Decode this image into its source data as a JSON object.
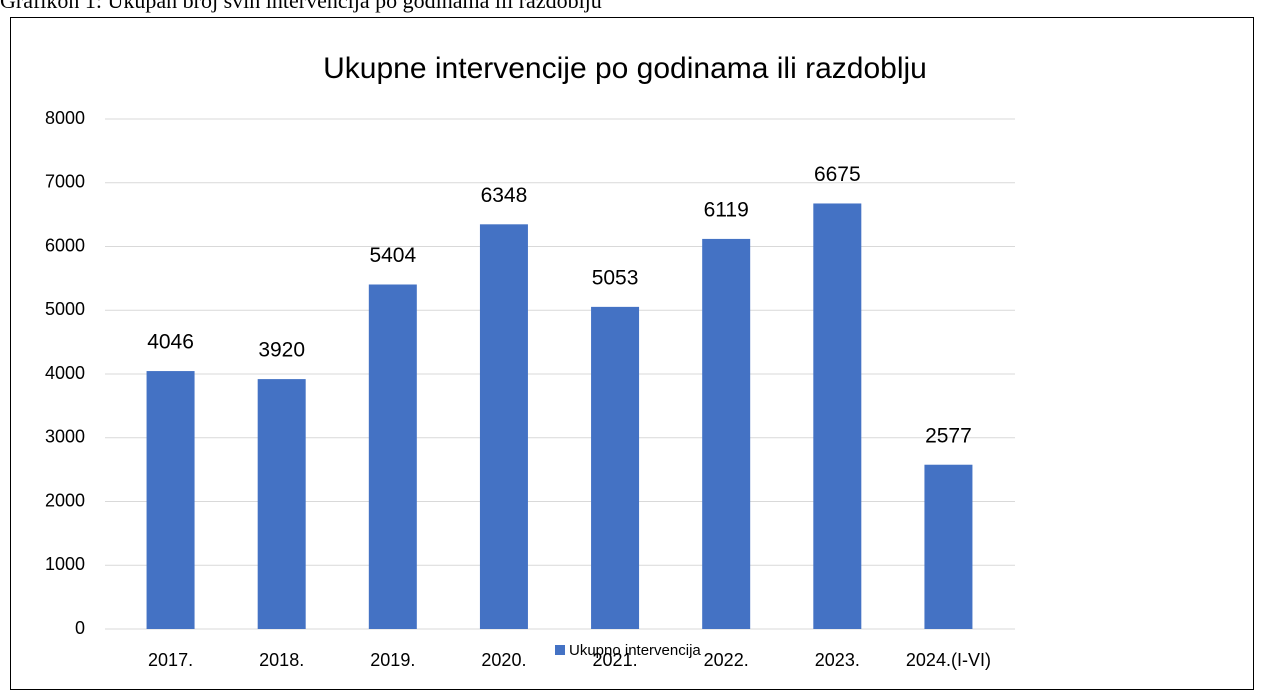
{
  "caption": "Grafikon 1: Ukupan broj svih intervencija po godinama ili razdoblju",
  "chart_data": {
    "type": "bar",
    "title": "Ukupne intervencije po godinama ili razdoblju",
    "categories": [
      "2017.",
      "2018.",
      "2019.",
      "2020.",
      "2021.",
      "2022.",
      "2023.",
      "2024.(I-VI)"
    ],
    "series": [
      {
        "name": "Ukupno intervencija",
        "color": "#4472c4",
        "values": [
          4046,
          3920,
          5404,
          6348,
          5053,
          6119,
          6675,
          2577
        ]
      }
    ],
    "ylim": [
      0,
      8000
    ],
    "yticks": [
      0,
      1000,
      2000,
      3000,
      4000,
      5000,
      6000,
      7000,
      8000
    ],
    "grid": true,
    "legend": "bottom"
  }
}
